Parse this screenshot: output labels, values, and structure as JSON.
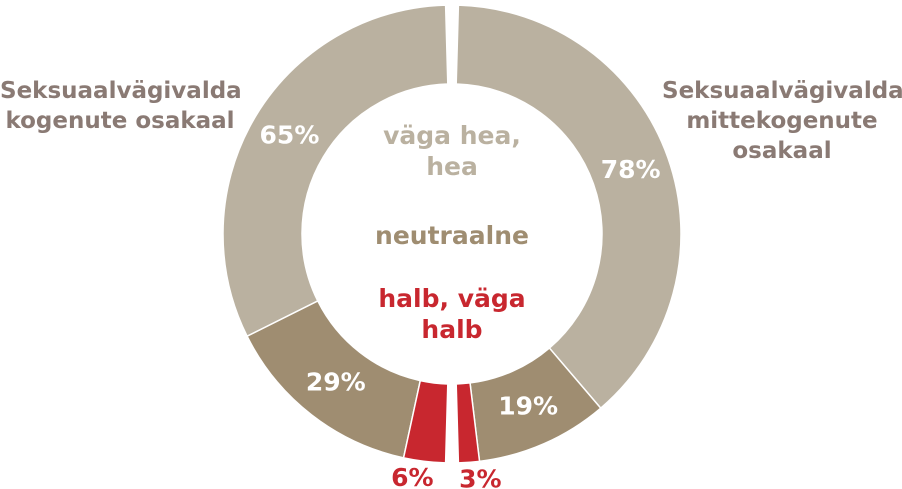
{
  "chart_data": {
    "type": "split-donut",
    "categories": [
      "väga hea, hea",
      "neutraalne",
      "halb, väga halb"
    ],
    "colors": [
      "#bab1a0",
      "#9f8d71",
      "#c8272f"
    ],
    "series": [
      {
        "name": "Seksuaalvägivalda kogenute osakaal",
        "values": [
          65,
          29,
          6
        ],
        "value_labels": [
          "65%",
          "29%",
          "6%"
        ]
      },
      {
        "name": "Seksuaalvägivalda mittekogenute osakaal",
        "values": [
          78,
          19,
          3
        ],
        "value_labels": [
          "78%",
          "19%",
          "3%"
        ]
      }
    ]
  }
}
